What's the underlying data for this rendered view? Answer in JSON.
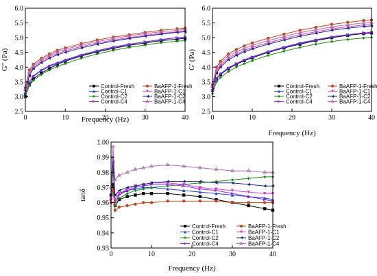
{
  "chart_data": [
    {
      "id": "gpp",
      "type": "line",
      "ylabel": "G\" (Pa)",
      "xlabel": "Frequency (Hz)",
      "xlim": [
        0,
        40
      ],
      "ylim": [
        2.5,
        6.0
      ],
      "xticks": [
        "0",
        "10",
        "20",
        "30",
        "40"
      ],
      "yticks": [
        "2.5",
        "3.0",
        "3.5",
        "4.0",
        "4.5",
        "5.0",
        "5.5",
        "6.0"
      ],
      "x": [
        0,
        1,
        2,
        4,
        6,
        8,
        10,
        14,
        18,
        22,
        26,
        30,
        34,
        38,
        40
      ],
      "series": [
        {
          "name": "Control-Fresh",
          "color": "#000000",
          "marker": "square",
          "values": [
            3.0,
            3.4,
            3.6,
            3.8,
            3.95,
            4.1,
            4.2,
            4.38,
            4.52,
            4.64,
            4.74,
            4.82,
            4.9,
            4.95,
            4.98
          ]
        },
        {
          "name": "Control-C1",
          "color": "#1f3fd8",
          "marker": "triangle",
          "values": [
            3.1,
            3.5,
            3.7,
            3.9,
            4.05,
            4.15,
            4.25,
            4.42,
            4.56,
            4.68,
            4.78,
            4.86,
            4.94,
            5.0,
            5.02
          ]
        },
        {
          "name": "Control-C2",
          "color": "#1a8a1a",
          "marker": "diamond",
          "values": [
            3.0,
            3.38,
            3.55,
            3.75,
            3.9,
            4.02,
            4.12,
            4.3,
            4.45,
            4.57,
            4.67,
            4.75,
            4.83,
            4.88,
            4.9
          ]
        },
        {
          "name": "Control-C4",
          "color": "#8a2be2",
          "marker": "triangle-right",
          "values": [
            3.1,
            3.5,
            3.68,
            3.88,
            4.02,
            4.12,
            4.22,
            4.4,
            4.55,
            4.67,
            4.77,
            4.86,
            4.93,
            5.0,
            5.02
          ]
        },
        {
          "name": "BaAFP-1-Fresh",
          "color": "#c0431a",
          "marker": "circle",
          "values": [
            3.3,
            3.9,
            4.1,
            4.3,
            4.45,
            4.57,
            4.65,
            4.8,
            4.92,
            5.02,
            5.1,
            5.18,
            5.25,
            5.3,
            5.32
          ]
        },
        {
          "name": "BaAFP-1-C1",
          "color": "#d63fd6",
          "marker": "triangle-down",
          "values": [
            3.2,
            3.75,
            4.0,
            4.2,
            4.35,
            4.47,
            4.55,
            4.7,
            4.82,
            4.92,
            5.0,
            5.08,
            5.15,
            5.2,
            5.22
          ]
        },
        {
          "name": "BaAFP-1-C2",
          "color": "#1a237e",
          "marker": "triangle-left",
          "values": [
            3.2,
            3.7,
            3.95,
            4.15,
            4.3,
            4.42,
            4.5,
            4.65,
            4.78,
            4.88,
            4.97,
            5.05,
            5.12,
            5.18,
            5.2
          ]
        },
        {
          "name": "BaAFP-1-C4",
          "color": "#b06cb0",
          "marker": "star",
          "values": [
            3.25,
            3.82,
            4.05,
            4.25,
            4.4,
            4.52,
            4.6,
            4.75,
            4.87,
            4.97,
            5.06,
            5.14,
            5.2,
            5.25,
            5.28
          ]
        }
      ]
    },
    {
      "id": "gp",
      "type": "line",
      "ylabel": "G' (Pa)",
      "xlabel": "Frequency (Hz)",
      "xlim": [
        0,
        40
      ],
      "ylim": [
        2.5,
        6.0
      ],
      "xticks": [
        "0",
        "10",
        "20",
        "30",
        "40"
      ],
      "yticks": [
        "2.5",
        "3.0",
        "3.5",
        "4.0",
        "4.5",
        "5.0",
        "5.5",
        "6.0"
      ],
      "x": [
        0,
        1,
        2,
        4,
        6,
        8,
        10,
        14,
        18,
        22,
        26,
        30,
        34,
        38,
        40
      ],
      "series": [
        {
          "name": "Control-Fresh",
          "color": "#000000",
          "marker": "square",
          "values": [
            3.2,
            3.6,
            3.75,
            3.95,
            4.1,
            4.22,
            4.32,
            4.5,
            4.65,
            4.78,
            4.9,
            5.0,
            5.08,
            5.14,
            5.16
          ]
        },
        {
          "name": "Control-C1",
          "color": "#1f3fd8",
          "marker": "triangle",
          "values": [
            3.2,
            3.62,
            3.78,
            3.98,
            4.12,
            4.25,
            4.35,
            4.53,
            4.68,
            4.82,
            4.93,
            5.03,
            5.1,
            5.16,
            5.18
          ]
        },
        {
          "name": "Control-C2",
          "color": "#1a8a1a",
          "marker": "diamond",
          "values": [
            3.1,
            3.5,
            3.65,
            3.85,
            4.0,
            4.12,
            4.22,
            4.4,
            4.54,
            4.67,
            4.78,
            4.87,
            4.94,
            4.99,
            5.01
          ]
        },
        {
          "name": "Control-C4",
          "color": "#8a2be2",
          "marker": "triangle-right",
          "values": [
            3.2,
            3.6,
            3.77,
            3.97,
            4.12,
            4.24,
            4.34,
            4.52,
            4.67,
            4.8,
            4.92,
            5.02,
            5.1,
            5.16,
            5.18
          ]
        },
        {
          "name": "BaAFP-1-Fresh",
          "color": "#c0431a",
          "marker": "circle",
          "values": [
            3.4,
            4.0,
            4.2,
            4.45,
            4.6,
            4.72,
            4.82,
            4.98,
            5.12,
            5.25,
            5.35,
            5.45,
            5.52,
            5.58,
            5.6
          ]
        },
        {
          "name": "BaAFP-1-C1",
          "color": "#d63fd6",
          "marker": "triangle-down",
          "values": [
            3.3,
            3.85,
            4.05,
            4.3,
            4.45,
            4.57,
            4.67,
            4.83,
            4.97,
            5.1,
            5.2,
            5.3,
            5.37,
            5.43,
            5.45
          ]
        },
        {
          "name": "BaAFP-1-C2",
          "color": "#1a237e",
          "marker": "triangle-left",
          "values": [
            3.3,
            3.8,
            4.0,
            4.25,
            4.4,
            4.52,
            4.62,
            4.78,
            4.92,
            5.05,
            5.15,
            5.25,
            5.32,
            5.38,
            5.4
          ]
        },
        {
          "name": "BaAFP-1-C4",
          "color": "#b06cb0",
          "marker": "star",
          "values": [
            3.35,
            3.9,
            4.12,
            4.37,
            4.52,
            4.64,
            4.74,
            4.9,
            5.04,
            5.17,
            5.27,
            5.37,
            5.44,
            5.5,
            5.52
          ]
        }
      ]
    },
    {
      "id": "tand",
      "type": "line",
      "ylabel": "tanδ",
      "xlabel": "Frequency (Hz)",
      "xlim": [
        0,
        40
      ],
      "ylim": [
        0.93,
        1.0
      ],
      "xticks": [
        "0",
        "10",
        "20",
        "30",
        "40"
      ],
      "yticks": [
        "0.93",
        "0.94",
        "0.95",
        "0.96",
        "0.97",
        "0.98",
        "0.99",
        "1.00"
      ],
      "x": [
        0,
        0.5,
        1,
        2,
        4,
        6,
        8,
        10,
        14,
        18,
        22,
        26,
        30,
        34,
        38,
        40
      ],
      "series": [
        {
          "name": "Control-Fresh",
          "color": "#000000",
          "marker": "square",
          "values": [
            0.965,
            0.972,
            0.958,
            0.962,
            0.964,
            0.965,
            0.966,
            0.966,
            0.966,
            0.965,
            0.964,
            0.962,
            0.96,
            0.958,
            0.956,
            0.955
          ]
        },
        {
          "name": "Control-C1",
          "color": "#1f3fd8",
          "marker": "triangle",
          "values": [
            0.96,
            0.985,
            0.962,
            0.966,
            0.968,
            0.969,
            0.97,
            0.97,
            0.969,
            0.968,
            0.967,
            0.966,
            0.965,
            0.964,
            0.963,
            0.962
          ]
        },
        {
          "name": "Control-C2",
          "color": "#1a8a1a",
          "marker": "diamond",
          "values": [
            0.962,
            0.982,
            0.958,
            0.963,
            0.966,
            0.968,
            0.969,
            0.97,
            0.971,
            0.972,
            0.973,
            0.974,
            0.975,
            0.976,
            0.977,
            0.977
          ]
        },
        {
          "name": "Control-C4",
          "color": "#8a2be2",
          "marker": "triangle-right",
          "values": [
            0.962,
            0.99,
            0.96,
            0.965,
            0.968,
            0.97,
            0.971,
            0.972,
            0.972,
            0.971,
            0.969,
            0.968,
            0.966,
            0.964,
            0.962,
            0.961
          ]
        },
        {
          "name": "BaAFP-1-Fresh",
          "color": "#c0431a",
          "marker": "circle",
          "values": [
            0.96,
            0.968,
            0.955,
            0.957,
            0.958,
            0.959,
            0.96,
            0.96,
            0.961,
            0.961,
            0.961,
            0.961,
            0.96,
            0.96,
            0.96,
            0.96
          ]
        },
        {
          "name": "BaAFP-1-C1",
          "color": "#d63fd6",
          "marker": "triangle-down",
          "values": [
            0.963,
            0.985,
            0.962,
            0.966,
            0.969,
            0.971,
            0.972,
            0.973,
            0.973,
            0.972,
            0.97,
            0.969,
            0.968,
            0.967,
            0.966,
            0.966
          ]
        },
        {
          "name": "BaAFP-1-C2",
          "color": "#1a237e",
          "marker": "triangle-left",
          "values": [
            0.965,
            0.987,
            0.965,
            0.968,
            0.97,
            0.971,
            0.972,
            0.973,
            0.974,
            0.974,
            0.974,
            0.973,
            0.973,
            0.972,
            0.971,
            0.971
          ]
        },
        {
          "name": "BaAFP-1-C4",
          "color": "#b06cb0",
          "marker": "star",
          "values": [
            0.97,
            0.997,
            0.975,
            0.978,
            0.98,
            0.982,
            0.983,
            0.984,
            0.985,
            0.984,
            0.983,
            0.982,
            0.981,
            0.981,
            0.98,
            0.98
          ]
        }
      ]
    }
  ]
}
